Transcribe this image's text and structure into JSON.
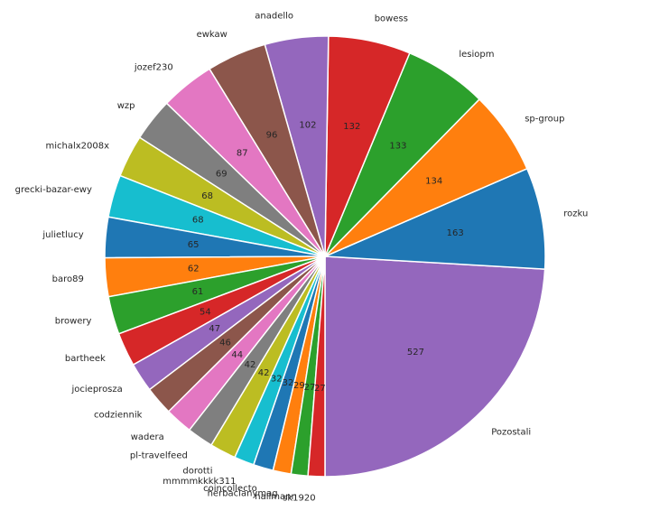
{
  "chart_data": {
    "type": "pie",
    "start_angle_deg": -90,
    "direction": "counterclockwise",
    "slices": [
      {
        "label": "Pozostali",
        "value": 527,
        "color": "#9467bd"
      },
      {
        "label": "rozku",
        "value": 163,
        "color": "#1f77b4"
      },
      {
        "label": "sp-group",
        "value": 134,
        "color": "#ff7f0e"
      },
      {
        "label": "lesiopm",
        "value": 133,
        "color": "#2ca02c"
      },
      {
        "label": "bowess",
        "value": 132,
        "color": "#d62728"
      },
      {
        "label": "anadello",
        "value": 102,
        "color": "#9467bd"
      },
      {
        "label": "ewkaw",
        "value": 96,
        "color": "#8c564b"
      },
      {
        "label": "jozef230",
        "value": 87,
        "color": "#e377c2"
      },
      {
        "label": "wzp",
        "value": 69,
        "color": "#7f7f7f"
      },
      {
        "label": "michalx2008x",
        "value": 68,
        "color": "#bcbd22"
      },
      {
        "label": "grecki-bazar-ewy",
        "value": 68,
        "color": "#17becf"
      },
      {
        "label": "julietlucy",
        "value": 65,
        "color": "#1f77b4"
      },
      {
        "label": "baro89",
        "value": 62,
        "color": "#ff7f0e"
      },
      {
        "label": "browery",
        "value": 61,
        "color": "#2ca02c"
      },
      {
        "label": "bartheek",
        "value": 54,
        "color": "#d62728"
      },
      {
        "label": "jocieproszа",
        "value": 47,
        "color": "#9467bd"
      },
      {
        "label": "codziennik",
        "value": 46,
        "color": "#8c564b"
      },
      {
        "label": "wadera",
        "value": 44,
        "color": "#e377c2"
      },
      {
        "label": "pl-travelfeed",
        "value": 42,
        "color": "#7f7f7f"
      },
      {
        "label": "dorotti",
        "value": 42,
        "color": "#bcbd22"
      },
      {
        "label": "mmmmkkkk311",
        "value": 32,
        "color": "#17becf"
      },
      {
        "label": "coincollecto",
        "value": 32,
        "color": "#1f77b4"
      },
      {
        "label": "herbacianymag",
        "value": 29,
        "color": "#ff7f0e"
      },
      {
        "label": "hallmann",
        "value": 27,
        "color": "#2ca02c"
      },
      {
        "label": "sk1920",
        "value": 27,
        "color": "#d62728"
      }
    ]
  }
}
